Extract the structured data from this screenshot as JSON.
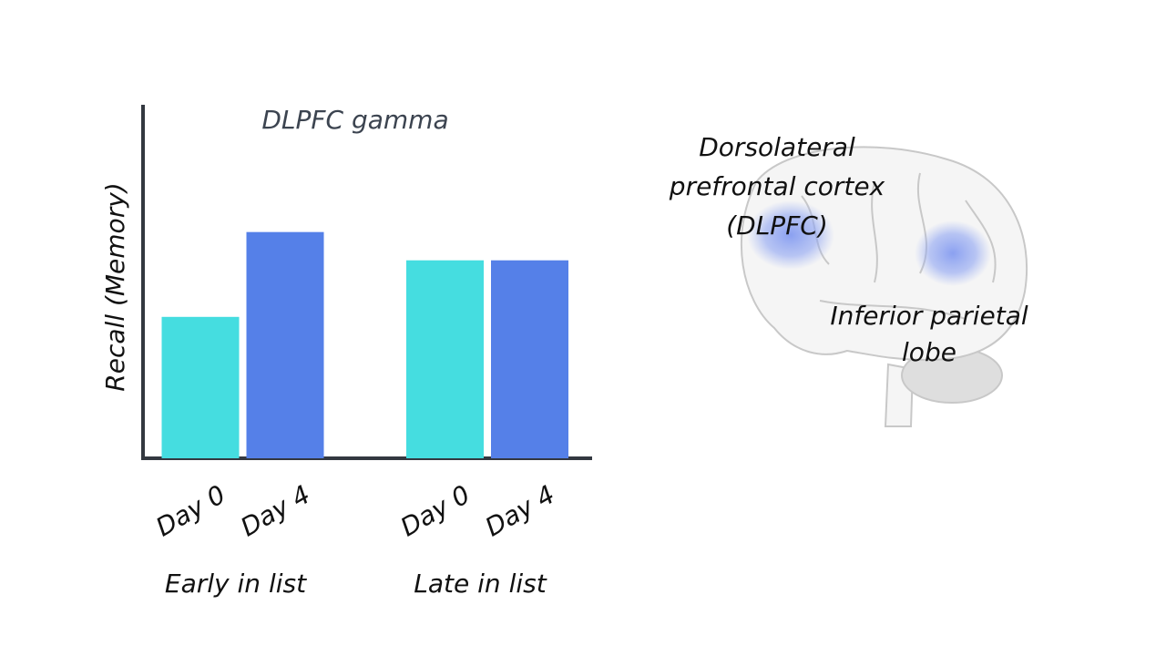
{
  "chart_data": {
    "type": "bar",
    "title": "DLPFC gamma",
    "y_label": "Recall (Memory)",
    "categories": [
      "Early in list",
      "Late in list"
    ],
    "series": [
      {
        "name": "Day 0",
        "color": "#45dde0",
        "values": [
          40,
          56
        ]
      },
      {
        "name": "Day 4",
        "color": "#5580e8",
        "values": [
          64,
          56
        ]
      }
    ],
    "ylim": [
      0,
      100
    ],
    "annotations": [
      [
        "Dorsolateral",
        "prefrontal cortex",
        "(DLPFC)"
      ],
      [
        "Inferior parietal",
        "lobe"
      ]
    ]
  }
}
